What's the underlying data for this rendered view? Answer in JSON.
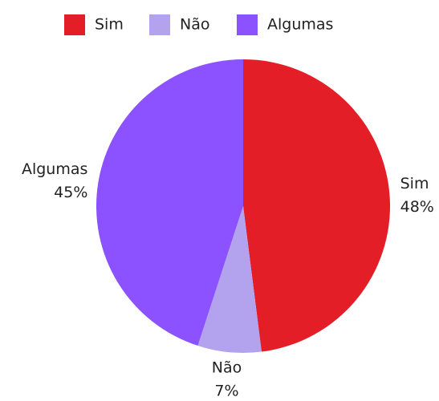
{
  "chart_data": {
    "type": "pie",
    "categories": [
      "Sim",
      "Não",
      "Algumas"
    ],
    "values": [
      48,
      7,
      45
    ],
    "value_labels": [
      "48%",
      "7%",
      "45%"
    ],
    "colors": [
      "#e41e26",
      "#b3a3ee",
      "#8c52ff"
    ],
    "legend": "top"
  }
}
